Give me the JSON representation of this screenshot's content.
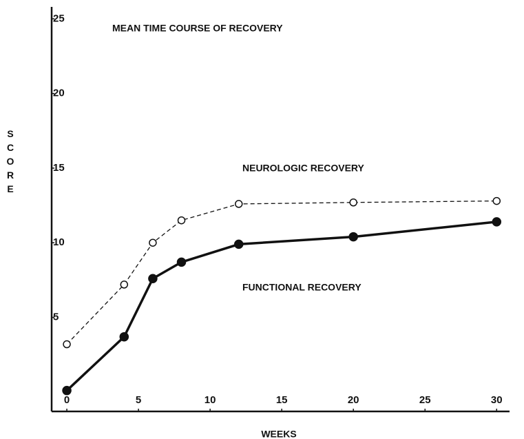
{
  "chart_data": {
    "type": "line",
    "title": "MEAN TIME COURSE OF RECOVERY",
    "xlabel": "WEEKS",
    "ylabel": "SCORE",
    "x": [
      0,
      4,
      6,
      8,
      12,
      20,
      30
    ],
    "series": [
      {
        "name": "NEUROLOGIC RECOVERY",
        "color": "#111111",
        "values": [
          3.2,
          7.2,
          10.0,
          11.5,
          12.6,
          12.7,
          12.8
        ]
      },
      {
        "name": "FUNCTIONAL RECOVERY",
        "color": "#111111",
        "values": [
          0.1,
          3.7,
          7.6,
          8.7,
          9.9,
          10.4,
          11.4
        ]
      }
    ],
    "xlim": [
      -1.06,
      30.9
    ],
    "xticks": [
      0,
      5,
      10,
      15,
      20,
      25,
      30
    ],
    "ylim": [
      -1.3,
      25.8
    ],
    "yticks": [
      5,
      10,
      15,
      20,
      25
    ],
    "grid": false
  }
}
